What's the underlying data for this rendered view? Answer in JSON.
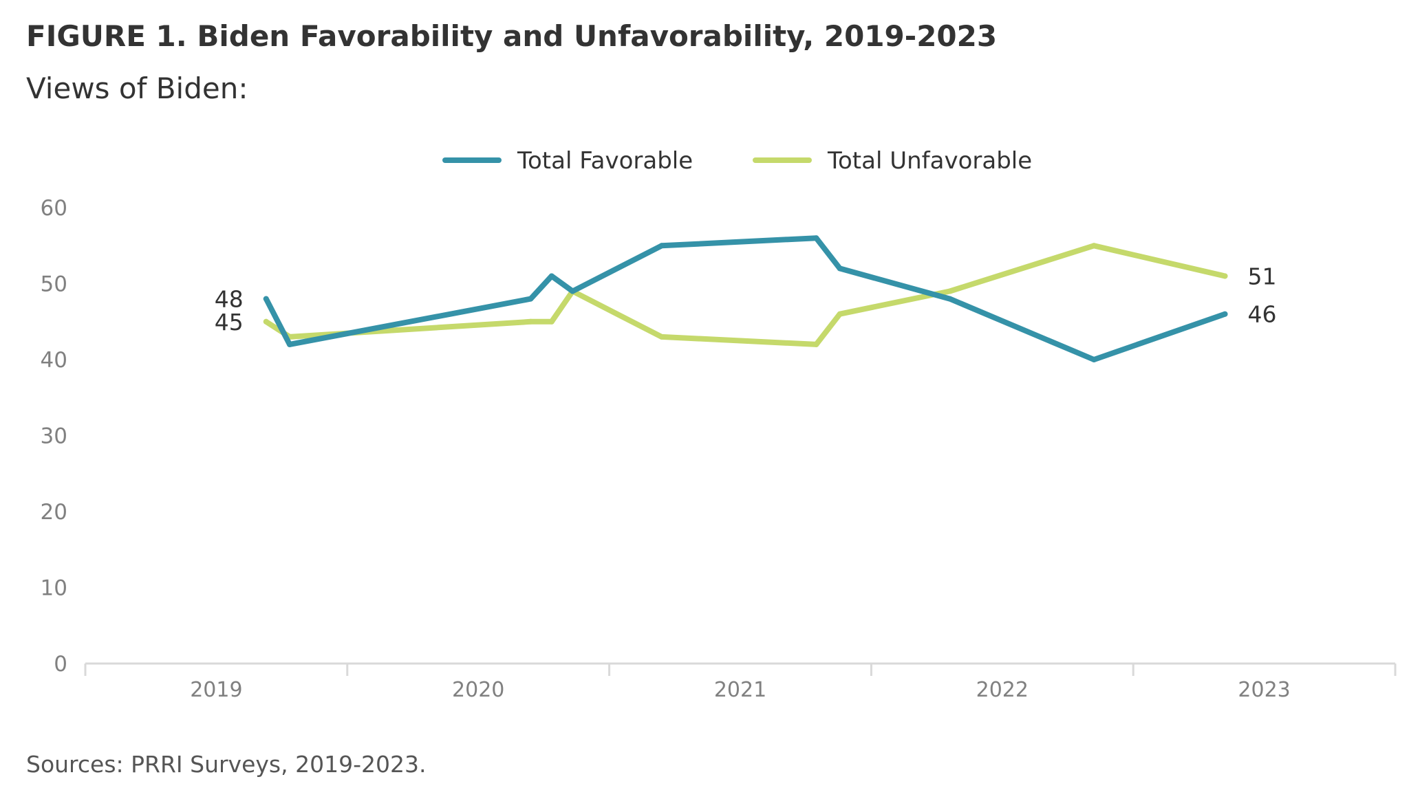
{
  "figure": {
    "title": "FIGURE 1.  Biden Favorability and Unfavorability, 2019-2023",
    "subtitle": "Views of Biden:",
    "source": "Sources: PRRI Surveys, 2019-2023."
  },
  "chart_data": {
    "type": "line",
    "title": "",
    "xlabel": "",
    "ylabel": "",
    "ylim": [
      0,
      60
    ],
    "xlim": [
      2019.0,
      2024.0
    ],
    "yticks": [
      0,
      10,
      20,
      30,
      40,
      50,
      60
    ],
    "x_tick_labels": [
      "2019",
      "2020",
      "2021",
      "2022",
      "2023"
    ],
    "grid": false,
    "legend_position": "top-center",
    "series": [
      {
        "name": "Total Favorable",
        "color": "#3592a8",
        "x": [
          2019.69,
          2019.78,
          2020.7,
          2020.78,
          2020.86,
          2021.2,
          2021.79,
          2021.88,
          2022.3,
          2022.85,
          2023.35
        ],
        "values": [
          48,
          42,
          48,
          51,
          49,
          55,
          56,
          52,
          48,
          40,
          46
        ]
      },
      {
        "name": "Total Unfavorable",
        "color": "#c5d96b",
        "x": [
          2019.69,
          2019.78,
          2020.7,
          2020.78,
          2020.86,
          2021.2,
          2021.79,
          2021.88,
          2022.3,
          2022.85,
          2023.35
        ],
        "values": [
          45,
          43,
          45,
          45,
          49,
          43,
          42,
          46,
          49,
          55,
          51
        ]
      }
    ],
    "data_labels": [
      {
        "series": 0,
        "point": 0,
        "text": "48",
        "side": "left"
      },
      {
        "series": 1,
        "point": 0,
        "text": "45",
        "side": "left"
      },
      {
        "series": 1,
        "point": 10,
        "text": "51",
        "side": "right"
      },
      {
        "series": 0,
        "point": 10,
        "text": "46",
        "side": "right"
      }
    ],
    "style": {
      "axis_color": "#d9d9d9",
      "tick_label_color": "#808080",
      "data_label_color": "#333333",
      "legend_text_color": "#333333"
    }
  }
}
